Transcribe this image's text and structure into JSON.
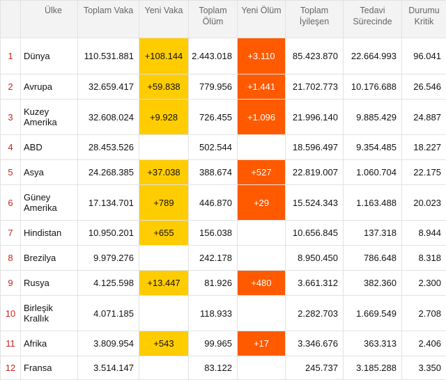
{
  "headers": {
    "rank": "",
    "country": "Ülke",
    "total_cases": "Toplam Vaka",
    "new_cases": "Yeni Vaka",
    "total_deaths": "Toplam Ölüm",
    "new_deaths": "Yeni Ölüm",
    "total_recovered": "Toplam İyileşen",
    "active": "Tedavi Sürecinde",
    "critical": "Durumu Kritik"
  },
  "rows": [
    {
      "rank": "1",
      "country": "Dünya",
      "total_cases": "110.531.881",
      "new_cases": "+108.144",
      "total_deaths": "2.443.018",
      "new_deaths": "+3.110",
      "total_recovered": "85.423.870",
      "active": "22.664.993",
      "critical": "96.041"
    },
    {
      "rank": "2",
      "country": "Avrupa",
      "total_cases": "32.659.417",
      "new_cases": "+59.838",
      "total_deaths": "779.956",
      "new_deaths": "+1.441",
      "total_recovered": "21.702.773",
      "active": "10.176.688",
      "critical": "26.546"
    },
    {
      "rank": "3",
      "country": "Kuzey Amerika",
      "total_cases": "32.608.024",
      "new_cases": "+9.928",
      "total_deaths": "726.455",
      "new_deaths": "+1.096",
      "total_recovered": "21.996.140",
      "active": "9.885.429",
      "critical": "24.887"
    },
    {
      "rank": "4",
      "country": "ABD",
      "total_cases": "28.453.526",
      "new_cases": "",
      "total_deaths": "502.544",
      "new_deaths": "",
      "total_recovered": "18.596.497",
      "active": "9.354.485",
      "critical": "18.227"
    },
    {
      "rank": "5",
      "country": "Asya",
      "total_cases": "24.268.385",
      "new_cases": "+37.038",
      "total_deaths": "388.674",
      "new_deaths": "+527",
      "total_recovered": "22.819.007",
      "active": "1.060.704",
      "critical": "22.175"
    },
    {
      "rank": "6",
      "country": "Güney Amerika",
      "total_cases": "17.134.701",
      "new_cases": "+789",
      "total_deaths": "446.870",
      "new_deaths": "+29",
      "total_recovered": "15.524.343",
      "active": "1.163.488",
      "critical": "20.023"
    },
    {
      "rank": "7",
      "country": "Hindistan",
      "total_cases": "10.950.201",
      "new_cases": "+655",
      "total_deaths": "156.038",
      "new_deaths": "",
      "total_recovered": "10.656.845",
      "active": "137.318",
      "critical": "8.944"
    },
    {
      "rank": "8",
      "country": "Brezilya",
      "total_cases": "9.979.276",
      "new_cases": "",
      "total_deaths": "242.178",
      "new_deaths": "",
      "total_recovered": "8.950.450",
      "active": "786.648",
      "critical": "8.318"
    },
    {
      "rank": "9",
      "country": "Rusya",
      "total_cases": "4.125.598",
      "new_cases": "+13.447",
      "total_deaths": "81.926",
      "new_deaths": "+480",
      "total_recovered": "3.661.312",
      "active": "382.360",
      "critical": "2.300"
    },
    {
      "rank": "10",
      "country": "Birleşik Krallık",
      "total_cases": "4.071.185",
      "new_cases": "",
      "total_deaths": "118.933",
      "new_deaths": "",
      "total_recovered": "2.282.703",
      "active": "1.669.549",
      "critical": "2.708"
    },
    {
      "rank": "11",
      "country": "Afrika",
      "total_cases": "3.809.954",
      "new_cases": "+543",
      "total_deaths": "99.965",
      "new_deaths": "+17",
      "total_recovered": "3.346.676",
      "active": "363.313",
      "critical": "2.406"
    },
    {
      "rank": "12",
      "country": "Fransa",
      "total_cases": "3.514.147",
      "new_cases": "",
      "total_deaths": "83.122",
      "new_deaths": "",
      "total_recovered": "245.737",
      "active": "3.185.288",
      "critical": "3.350"
    }
  ],
  "colors": {
    "new_cases_highlight": "#ffcc00",
    "new_deaths_highlight": "#ff5a00",
    "rank_text": "#c9231b",
    "header_bg": "#f3f3f3"
  }
}
